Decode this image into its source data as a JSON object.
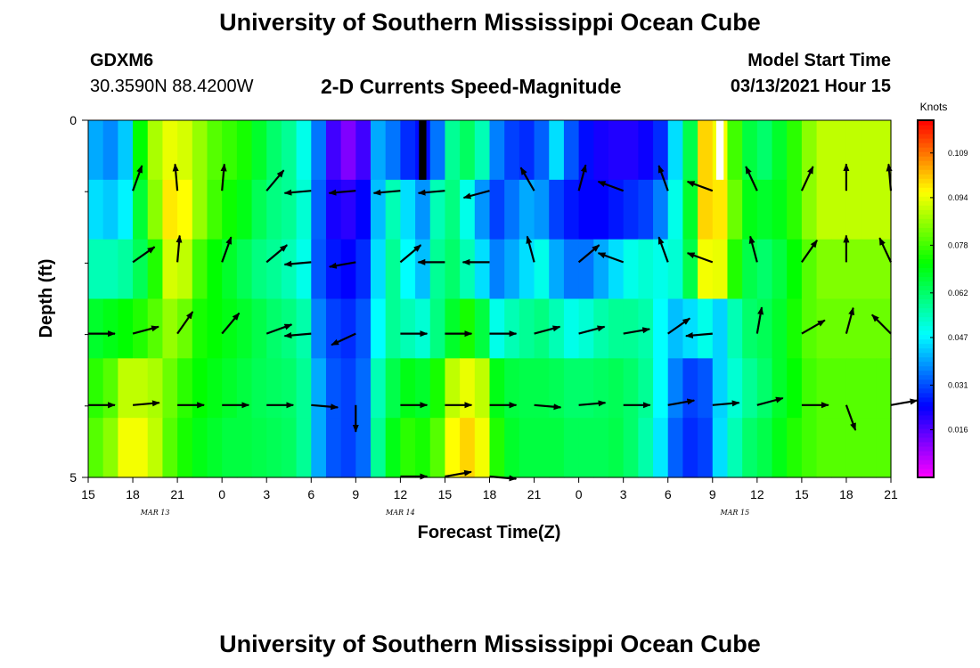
{
  "header": {
    "title": "University of Southern Mississippi Ocean Cube",
    "station_id": "GDXM6",
    "station_coords": "30.3590N 88.4200W",
    "model_start_label": "Model Start Time",
    "model_start_value": "03/13/2021 Hour 15"
  },
  "footer": {
    "title": "University of Southern Mississippi Ocean Cube"
  },
  "chart_data": {
    "type": "heatmap",
    "title": "2-D Currents Speed-Magnitude",
    "xlabel": "Forecast Time(Z)",
    "ylabel": "Depth (ft)",
    "colorbar_label": "Knots",
    "x_range_hours": [
      0,
      54
    ],
    "y_range_ft": [
      0,
      5
    ],
    "x_ticks": [
      {
        "h": 0,
        "label": "15"
      },
      {
        "h": 3,
        "label": "18"
      },
      {
        "h": 6,
        "label": "21"
      },
      {
        "h": 9,
        "label": "0"
      },
      {
        "h": 12,
        "label": "3"
      },
      {
        "h": 15,
        "label": "6"
      },
      {
        "h": 18,
        "label": "9"
      },
      {
        "h": 21,
        "label": "12"
      },
      {
        "h": 24,
        "label": "15"
      },
      {
        "h": 27,
        "label": "18"
      },
      {
        "h": 30,
        "label": "21"
      },
      {
        "h": 33,
        "label": "0"
      },
      {
        "h": 36,
        "label": "3"
      },
      {
        "h": 39,
        "label": "6"
      },
      {
        "h": 42,
        "label": "9"
      },
      {
        "h": 45,
        "label": "12"
      },
      {
        "h": 48,
        "label": "15"
      },
      {
        "h": 51,
        "label": "18"
      },
      {
        "h": 54,
        "label": "21"
      }
    ],
    "date_labels": [
      {
        "h": 4.5,
        "label": "MAR 13"
      },
      {
        "h": 21,
        "label": "MAR 14"
      },
      {
        "h": 43.5,
        "label": "MAR 15"
      }
    ],
    "y_ticks": [
      {
        "v": 0,
        "label": "0"
      },
      {
        "v": 5,
        "label": "5"
      }
    ],
    "y_minor_ticks": [
      1,
      2,
      3,
      4
    ],
    "colorbar_ticks": [
      "0.016",
      "0.031",
      "0.047",
      "0.062",
      "0.078",
      "0.094",
      "0.109"
    ],
    "colorbar_tick_values": [
      0.016,
      0.031,
      0.047,
      0.062,
      0.078,
      0.094,
      0.109
    ],
    "color_range": [
      0.0,
      0.12
    ],
    "speed_knots": [
      [
        0.04,
        0.037,
        0.043,
        0.072,
        0.088,
        0.094,
        0.092,
        0.086,
        0.08,
        0.077,
        0.074,
        0.068,
        0.062,
        0.058,
        0.05,
        0.035,
        0.018,
        0.012,
        0.018,
        0.04,
        0.035,
        0.028,
        0.025,
        0.035,
        0.058,
        0.063,
        0.055,
        0.036,
        0.03,
        0.028,
        0.033,
        0.045,
        0.032,
        0.025,
        0.022,
        0.021,
        0.021,
        0.023,
        0.028,
        0.045,
        0.065,
        0.1,
        0.095,
        0.078,
        0.066,
        0.062,
        0.068,
        0.076,
        0.085,
        0.09,
        0.09,
        0.09,
        0.09,
        0.09
      ],
      [
        0.045,
        0.043,
        0.047,
        0.067,
        0.085,
        0.098,
        0.096,
        0.086,
        0.078,
        0.073,
        0.07,
        0.064,
        0.06,
        0.058,
        0.052,
        0.033,
        0.022,
        0.02,
        0.024,
        0.042,
        0.055,
        0.045,
        0.038,
        0.055,
        0.06,
        0.05,
        0.038,
        0.03,
        0.035,
        0.04,
        0.038,
        0.03,
        0.026,
        0.024,
        0.024,
        0.026,
        0.028,
        0.03,
        0.036,
        0.05,
        0.068,
        0.1,
        0.098,
        0.082,
        0.07,
        0.068,
        0.07,
        0.076,
        0.085,
        0.09,
        0.09,
        0.09,
        0.09,
        0.09
      ],
      [
        0.055,
        0.055,
        0.057,
        0.064,
        0.075,
        0.092,
        0.09,
        0.078,
        0.072,
        0.068,
        0.064,
        0.06,
        0.058,
        0.055,
        0.05,
        0.032,
        0.026,
        0.024,
        0.028,
        0.045,
        0.058,
        0.048,
        0.042,
        0.058,
        0.062,
        0.055,
        0.045,
        0.036,
        0.04,
        0.045,
        0.05,
        0.04,
        0.035,
        0.035,
        0.04,
        0.045,
        0.05,
        0.052,
        0.05,
        0.052,
        0.065,
        0.095,
        0.094,
        0.075,
        0.065,
        0.062,
        0.066,
        0.072,
        0.08,
        0.084,
        0.084,
        0.084,
        0.084,
        0.084
      ],
      [
        0.068,
        0.07,
        0.072,
        0.075,
        0.08,
        0.086,
        0.082,
        0.074,
        0.072,
        0.07,
        0.068,
        0.065,
        0.062,
        0.06,
        0.056,
        0.036,
        0.03,
        0.028,
        0.032,
        0.048,
        0.058,
        0.055,
        0.052,
        0.06,
        0.068,
        0.074,
        0.066,
        0.05,
        0.055,
        0.058,
        0.06,
        0.055,
        0.05,
        0.052,
        0.056,
        0.058,
        0.058,
        0.056,
        0.048,
        0.042,
        0.045,
        0.05,
        0.044,
        0.055,
        0.062,
        0.064,
        0.068,
        0.074,
        0.08,
        0.082,
        0.082,
        0.082,
        0.082,
        0.082
      ],
      [
        0.076,
        0.08,
        0.09,
        0.09,
        0.088,
        0.082,
        0.076,
        0.072,
        0.07,
        0.068,
        0.066,
        0.064,
        0.063,
        0.062,
        0.058,
        0.04,
        0.032,
        0.03,
        0.034,
        0.055,
        0.065,
        0.07,
        0.068,
        0.074,
        0.09,
        0.094,
        0.09,
        0.07,
        0.066,
        0.065,
        0.065,
        0.064,
        0.062,
        0.062,
        0.063,
        0.064,
        0.062,
        0.058,
        0.048,
        0.036,
        0.03,
        0.032,
        0.044,
        0.052,
        0.058,
        0.062,
        0.068,
        0.072,
        0.078,
        0.08,
        0.08,
        0.08,
        0.08,
        0.08
      ],
      [
        0.08,
        0.085,
        0.095,
        0.095,
        0.09,
        0.08,
        0.074,
        0.07,
        0.068,
        0.066,
        0.066,
        0.065,
        0.064,
        0.063,
        0.058,
        0.04,
        0.032,
        0.03,
        0.034,
        0.058,
        0.07,
        0.076,
        0.074,
        0.08,
        0.096,
        0.1,
        0.095,
        0.075,
        0.068,
        0.066,
        0.066,
        0.066,
        0.064,
        0.064,
        0.064,
        0.065,
        0.062,
        0.056,
        0.046,
        0.033,
        0.028,
        0.03,
        0.045,
        0.055,
        0.062,
        0.065,
        0.07,
        0.075,
        0.078,
        0.08,
        0.08,
        0.08,
        0.08,
        0.08
      ]
    ],
    "missing_cells": [
      {
        "h": 22,
        "row": 0,
        "color": "#000000"
      },
      {
        "h": 42,
        "row": 0,
        "color": "#ffffff"
      }
    ],
    "vector_rows_depth_ft": [
      1,
      2,
      3,
      4,
      5
    ],
    "vector_times_h": [
      0,
      3,
      6,
      9,
      12,
      15,
      18,
      21,
      24,
      27,
      30,
      33,
      36,
      39,
      42,
      45,
      48,
      51,
      54
    ],
    "vector_directions_deg": [
      [
        null,
        20,
        -5,
        5,
        40,
        -95,
        -95,
        -95,
        -95,
        -105,
        -30,
        15,
        -70,
        -20,
        -70,
        -25,
        25,
        0,
        -5
      ],
      [
        null,
        55,
        5,
        20,
        50,
        -95,
        -100,
        50,
        -90,
        -90,
        -15,
        50,
        -70,
        -20,
        -70,
        -15,
        35,
        0,
        -25
      ],
      [
        90,
        75,
        35,
        40,
        70,
        -95,
        -115,
        90,
        90,
        90,
        75,
        75,
        80,
        55,
        -95,
        10,
        60,
        15,
        -45
      ],
      [
        90,
        85,
        90,
        90,
        90,
        95,
        180,
        90,
        90,
        90,
        95,
        85,
        90,
        80,
        85,
        75,
        90,
        160,
        80
      ],
      [
        null,
        null,
        null,
        null,
        null,
        null,
        null,
        90,
        80,
        95,
        null,
        null,
        null,
        null,
        null,
        null,
        null,
        null,
        null
      ]
    ]
  }
}
